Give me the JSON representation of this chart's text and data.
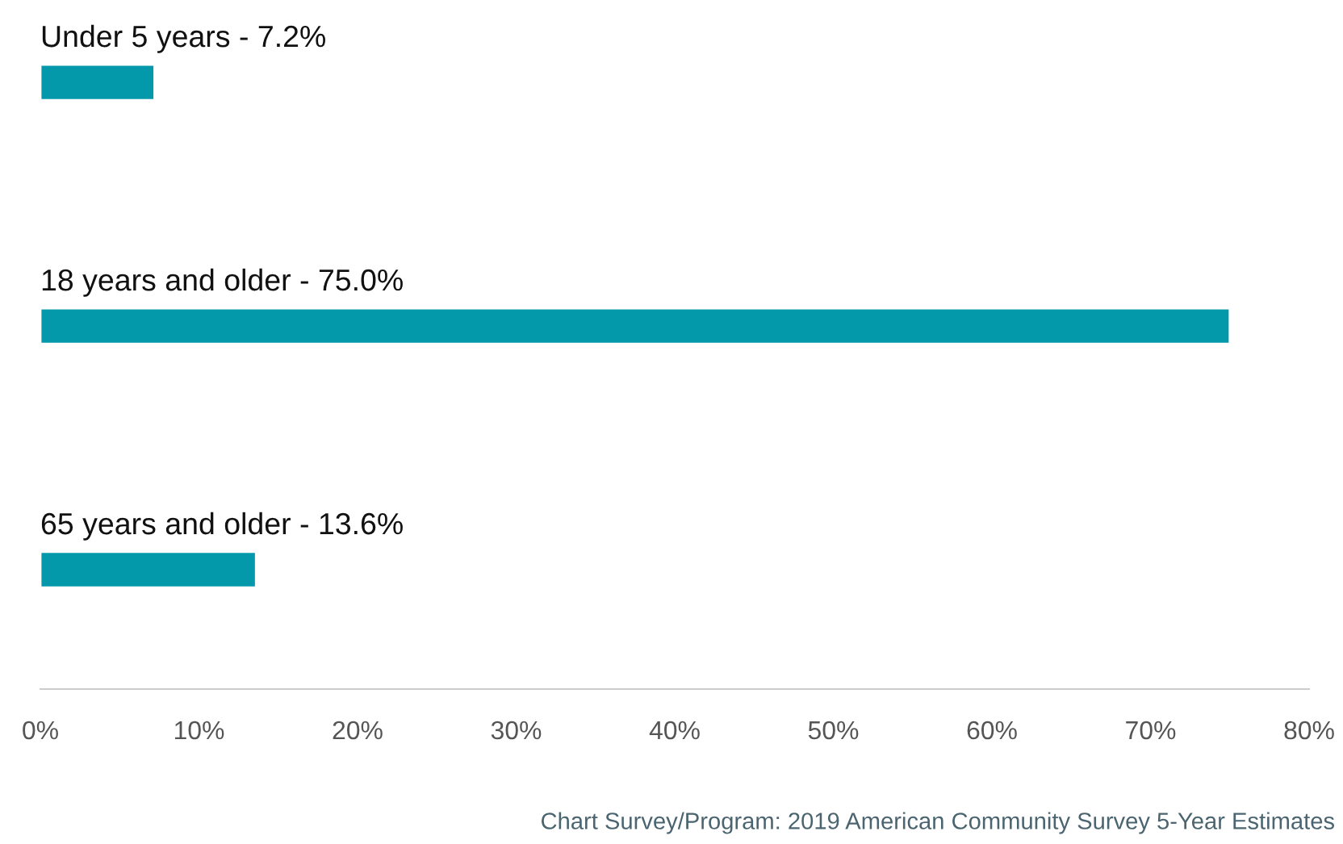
{
  "chart_data": {
    "type": "bar",
    "orientation": "horizontal",
    "categories": [
      "Under 5 years - 7.2%",
      "18 years and older - 75.0%",
      "65 years and older - 13.6%"
    ],
    "values": [
      7.2,
      75.0,
      13.6
    ],
    "color": "#0399ab",
    "xlim": [
      0,
      80
    ],
    "xticks": [
      {
        "value": 0,
        "label": "0%"
      },
      {
        "value": 10,
        "label": "10%"
      },
      {
        "value": 20,
        "label": "20%"
      },
      {
        "value": 30,
        "label": "30%"
      },
      {
        "value": 40,
        "label": "40%"
      },
      {
        "value": 50,
        "label": "50%"
      },
      {
        "value": 60,
        "label": "60%"
      },
      {
        "value": 70,
        "label": "70%"
      },
      {
        "value": 80,
        "label": "80%"
      }
    ],
    "grid": false,
    "annotations": [
      "Chart Survey/Program: 2019 American Community Survey 5-Year Estimates"
    ]
  }
}
